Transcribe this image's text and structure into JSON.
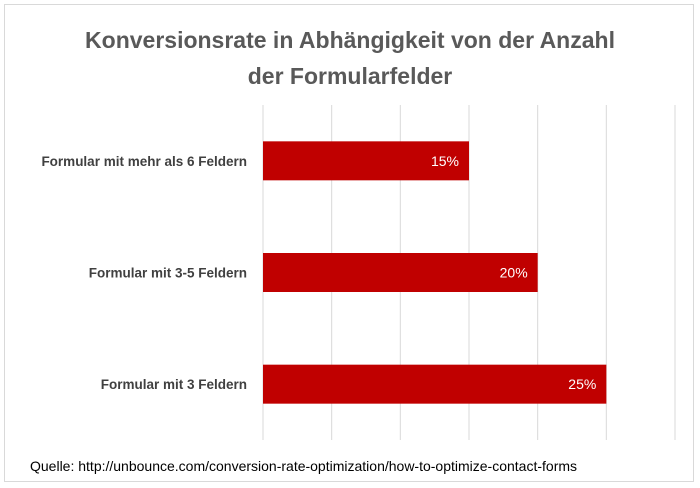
{
  "chart_data": {
    "type": "bar",
    "orientation": "horizontal",
    "title_line1": "Konversionsrate in Abhängigkeit von der Anzahl",
    "title_line2": "der Formularfelder",
    "categories": [
      "Formular mit mehr als 6 Feldern",
      "Formular mit 3-5 Feldern",
      "Formular mit 3 Feldern"
    ],
    "values": [
      15,
      20,
      25
    ],
    "value_labels": [
      "15%",
      "20%",
      "25%"
    ],
    "unit": "%",
    "xlim": [
      0,
      30
    ],
    "grid": true,
    "bar_color": "#c00000",
    "label_color": "#ffffff",
    "category_label_color": "#404040"
  },
  "source": "Quelle: http://unbounce.com/conversion-rate-optimization/how-to-optimize-contact-forms"
}
